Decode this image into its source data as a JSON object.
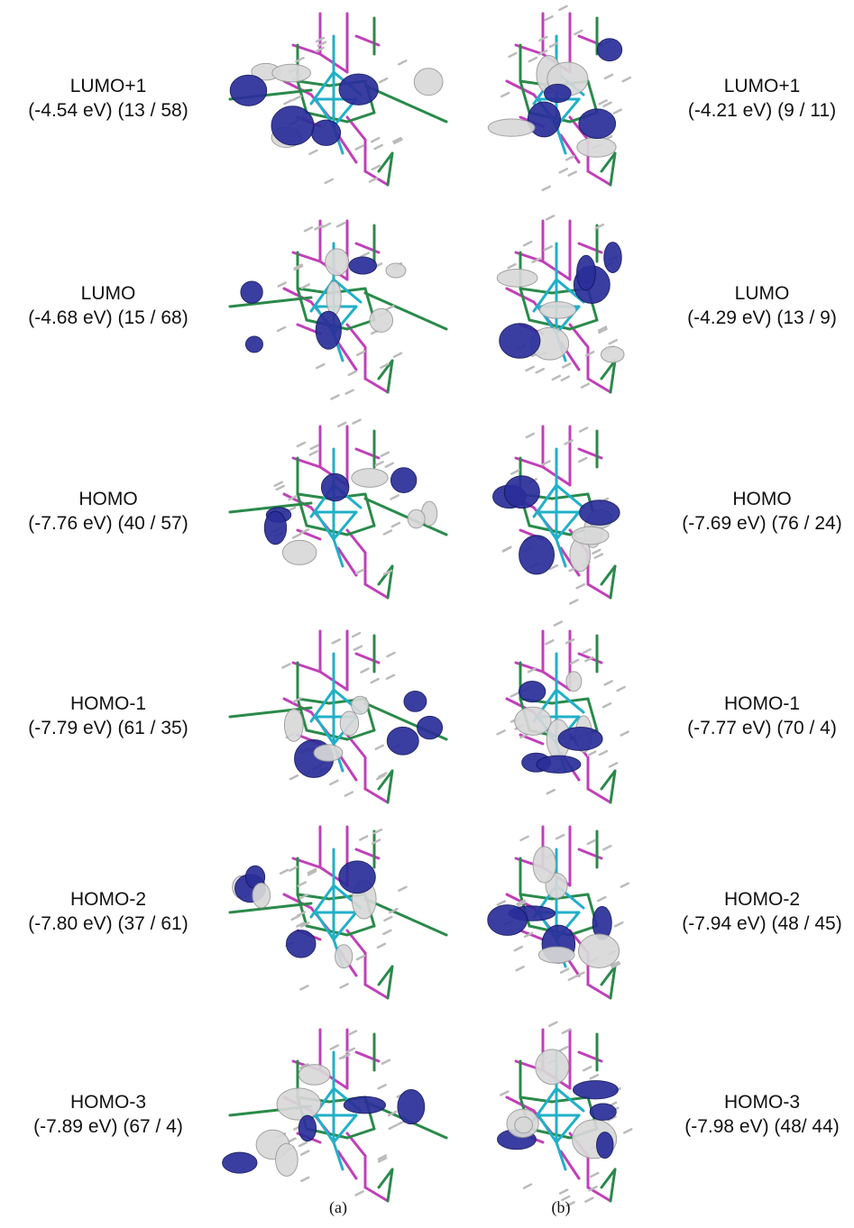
{
  "columns": [
    {
      "caption": "(a)",
      "orbitals": [
        {
          "name": "LUMO+1",
          "detail": "(-4.54 eV) (13 / 58)"
        },
        {
          "name": "LUMO",
          "detail": "(-4.68 eV) (15 / 68)"
        },
        {
          "name": "HOMO",
          "detail": "(-7.76 eV) (40 / 57)"
        },
        {
          "name": "HOMO-1",
          "detail": "(-7.79 eV) (61 / 35)"
        },
        {
          "name": "HOMO-2",
          "detail": "(-7.80 eV) (37 / 61)"
        },
        {
          "name": "HOMO-3",
          "detail": "(-7.89 eV) (67 / 4)"
        }
      ]
    },
    {
      "caption": "(b)",
      "orbitals": [
        {
          "name": "LUMO+1",
          "detail": "(-4.21 eV) (9 / 11)"
        },
        {
          "name": "LUMO",
          "detail": "(-4.29 eV) (13 / 9)"
        },
        {
          "name": "HOMO",
          "detail": "(-7.69 eV) (76 / 24)"
        },
        {
          "name": "HOMO-1",
          "detail": "(-7.77 eV) (70 / 4)"
        },
        {
          "name": "HOMO-2",
          "detail": "(-7.94 eV) (48 / 45)"
        },
        {
          "name": "HOMO-3",
          "detail": "(-7.98 eV) (48/ 44)"
        }
      ]
    }
  ]
}
